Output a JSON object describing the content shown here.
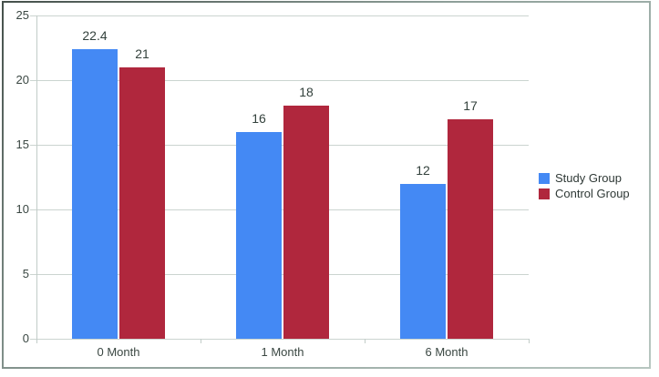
{
  "chart_data": {
    "type": "bar",
    "title": "",
    "xlabel": "",
    "ylabel": "",
    "categories": [
      "0 Month",
      "1 Month",
      "6 Month"
    ],
    "series": [
      {
        "name": "Study Group",
        "color": "#4489F4",
        "values": [
          22.4,
          16,
          12
        ],
        "value_labels": [
          "22.4",
          "16",
          "12"
        ]
      },
      {
        "name": "Control Group",
        "color": "#B0273D",
        "values": [
          21,
          18,
          17
        ],
        "value_labels": [
          "21",
          "18",
          "17"
        ]
      }
    ],
    "ylim": [
      0,
      25
    ],
    "ytick_step": 5,
    "ytick_labels": [
      "0",
      "5",
      "10",
      "15",
      "20",
      "25"
    ],
    "grid": true,
    "legend_position": "right-middle",
    "value_labels_shown": true
  },
  "colors": {
    "background": "#FFFFFF",
    "study_group_blue": "#4489F4",
    "control_group_red": "#B0273D",
    "gridline": "#CBD4D0",
    "axis_line": "#C2CCC8",
    "axis_text": "#3A4742",
    "value_label_text": "#33413C",
    "legend_text": "#2F3936",
    "frame_border_dark": "#45504B",
    "frame_border_light": "#B7C6C0"
  }
}
